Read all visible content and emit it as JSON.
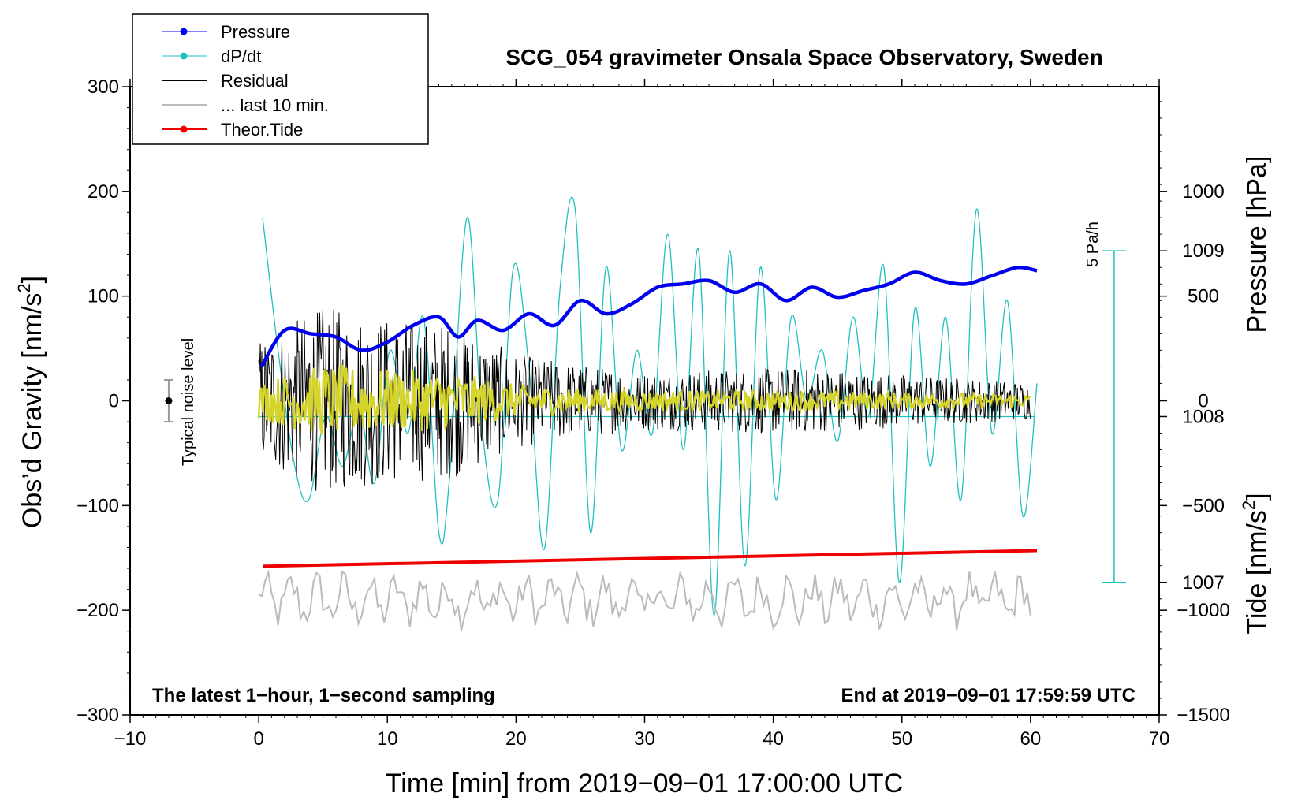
{
  "chart_data": {
    "type": "line",
    "title": "SCG_054 gravimeter Onsala Space Observatory, Sweden",
    "xlabel": "Time [min] from 2019−09−01 17:00:00 UTC",
    "ylabel_main": "Obs’d Gravity [nm/s",
    "ylabel_main_sup": "2",
    "ylabel_main_end": "]",
    "ylabel_pressure": "Pressure [hPa]",
    "ylabel_tide": "Tide [nm/s",
    "ylabel_tide_sup": "2",
    "ylabel_tide_end": "]",
    "xlim": [
      -10,
      70
    ],
    "ylim": [
      -300,
      300
    ],
    "x_ticks": [
      {
        "v": -10,
        "label": "−10"
      },
      {
        "v": 0,
        "label": "0"
      },
      {
        "v": 10,
        "label": "10"
      },
      {
        "v": 20,
        "label": "20"
      },
      {
        "v": 30,
        "label": "30"
      },
      {
        "v": 40,
        "label": "40"
      },
      {
        "v": 50,
        "label": "50"
      },
      {
        "v": 60,
        "label": "60"
      },
      {
        "v": 70,
        "label": "70"
      }
    ],
    "y_ticks": [
      {
        "v": 300,
        "label": "300"
      },
      {
        "v": 200,
        "label": "200"
      },
      {
        "v": 100,
        "label": "100"
      },
      {
        "v": 0,
        "label": "0"
      },
      {
        "v": -100,
        "label": "−100"
      },
      {
        "v": -200,
        "label": "−200"
      },
      {
        "v": -300,
        "label": "−300"
      }
    ],
    "pressure_axis": {
      "range": [
        1006.2,
        1009.99
      ],
      "ticks": [
        {
          "v": 1009,
          "label": "1009"
        },
        {
          "v": 1008,
          "label": "1008"
        },
        {
          "v": 1007,
          "label": "1007"
        }
      ]
    },
    "tide_axis": {
      "range": [
        -1500,
        1500
      ],
      "ticks": [
        {
          "v": 1000,
          "label": "1000"
        },
        {
          "v": 500,
          "label": "500"
        },
        {
          "v": 0,
          "label": "0"
        },
        {
          "v": -500,
          "label": "−500"
        },
        {
          "v": -1000,
          "label": "−1000"
        },
        {
          "v": -1500,
          "label": "−1500"
        }
      ]
    },
    "legend": [
      {
        "name": "Pressure",
        "color": "#0000ee",
        "marker": true
      },
      {
        "name": "dP/dt",
        "color": "#20c0c0",
        "marker": true
      },
      {
        "name": "Residual",
        "color": "#000000",
        "marker": false
      },
      {
        "name": "... last 10 min.",
        "color": "#bbbbbb",
        "marker": false
      },
      {
        "name": "Theor.Tide",
        "color": "#ee0000",
        "marker": true
      }
    ],
    "series": [
      {
        "name": "Pressure",
        "axis": "pressure",
        "color": "#0000ee",
        "x": [
          0.2,
          2.0,
          4.0,
          6.0,
          8.0,
          10.0,
          12.0,
          14.0,
          15.5,
          17.0,
          19.0,
          21.0,
          23.0,
          25.0,
          27.0,
          29.0,
          31.0,
          33.0,
          35.0,
          37.0,
          39.0,
          41.0,
          43.0,
          45.0,
          47.0,
          49.0,
          51.0,
          53.0,
          55.0,
          57.0,
          59.0,
          60.5
        ],
        "values": [
          1008.3,
          1008.52,
          1008.5,
          1008.48,
          1008.4,
          1008.45,
          1008.55,
          1008.6,
          1008.48,
          1008.58,
          1008.52,
          1008.62,
          1008.55,
          1008.7,
          1008.62,
          1008.68,
          1008.78,
          1008.8,
          1008.82,
          1008.75,
          1008.8,
          1008.7,
          1008.78,
          1008.72,
          1008.76,
          1008.8,
          1008.87,
          1008.82,
          1008.8,
          1008.85,
          1008.9,
          1008.88
        ]
      },
      {
        "name": "dP/dt",
        "axis": "pressure",
        "color": "#20c0c0",
        "zero_level": 1008.0,
        "x": [
          0.3,
          1.5,
          2.8,
          3.9,
          5.2,
          6.5,
          7.8,
          9.0,
          10.2,
          11.6,
          12.8,
          14.0,
          14.8,
          16.2,
          17.4,
          18.6,
          19.8,
          21.0,
          22.2,
          23.4,
          24.6,
          25.8,
          27.0,
          28.2,
          29.4,
          30.6,
          31.8,
          33.0,
          34.2,
          35.4,
          36.6,
          37.8,
          39.0,
          40.2,
          41.4,
          42.6,
          43.8,
          45.0,
          46.2,
          47.4,
          48.6,
          49.8,
          51.0,
          52.2,
          53.4,
          54.6,
          55.8,
          57.0,
          58.2,
          59.4,
          60.5
        ],
        "values": [
          1009.2,
          1008.4,
          1007.7,
          1007.5,
          1008.0,
          1007.7,
          1008.05,
          1007.6,
          1008.4,
          1007.9,
          1008.6,
          1007.3,
          1007.6,
          1009.2,
          1007.9,
          1007.5,
          1008.9,
          1008.3,
          1007.2,
          1008.75,
          1009.25,
          1007.3,
          1008.9,
          1007.8,
          1008.4,
          1007.9,
          1009.1,
          1007.8,
          1009.0,
          1006.8,
          1009.0,
          1007.1,
          1008.9,
          1007.5,
          1008.6,
          1008.1,
          1008.4,
          1007.85,
          1008.6,
          1008.0,
          1008.9,
          1007.0,
          1008.65,
          1007.7,
          1008.6,
          1007.5,
          1009.25,
          1007.9,
          1008.7,
          1007.4,
          1008.2
        ]
      },
      {
        "name": "Residual",
        "axis": "main",
        "color": "#000000",
        "x": [
          0,
          60
        ],
        "envelope": {
          "x": [
            0,
            5,
            10,
            15,
            20,
            25,
            30,
            35,
            40,
            45,
            50,
            55,
            60
          ],
          "amp": [
            60,
            90,
            80,
            75,
            45,
            35,
            28,
            30,
            32,
            30,
            25,
            22,
            18
          ]
        }
      },
      {
        "name": "Residual filtered",
        "axis": "main",
        "color": "#d4d42a",
        "envelope": {
          "x": [
            0,
            5,
            10,
            15,
            20,
            25,
            30,
            35,
            40,
            45,
            50,
            55,
            60
          ],
          "amp": [
            18,
            35,
            30,
            28,
            16,
            12,
            10,
            10,
            10,
            9,
            8,
            7,
            6
          ]
        }
      },
      {
        "name": "... last 10 min.",
        "axis": "main",
        "color": "#bbbbbb",
        "x": [
          0,
          60
        ],
        "baseline": -190,
        "amplitude": 20
      },
      {
        "name": "Theor.Tide",
        "axis": "main",
        "color": "#ee0000",
        "x": [
          0.3,
          60.5
        ],
        "values": [
          -158,
          -143
        ]
      }
    ],
    "annotations": {
      "noise_label": "Typical noise level",
      "noise_bar": {
        "x": -7,
        "center": 0,
        "half_range": 20
      },
      "dpdt_scale_label": "5 Pa/h",
      "footer_left": "The latest 1−hour, 1−second sampling",
      "footer_right": "End at 2019−09−01 17:59:59 UTC"
    }
  }
}
